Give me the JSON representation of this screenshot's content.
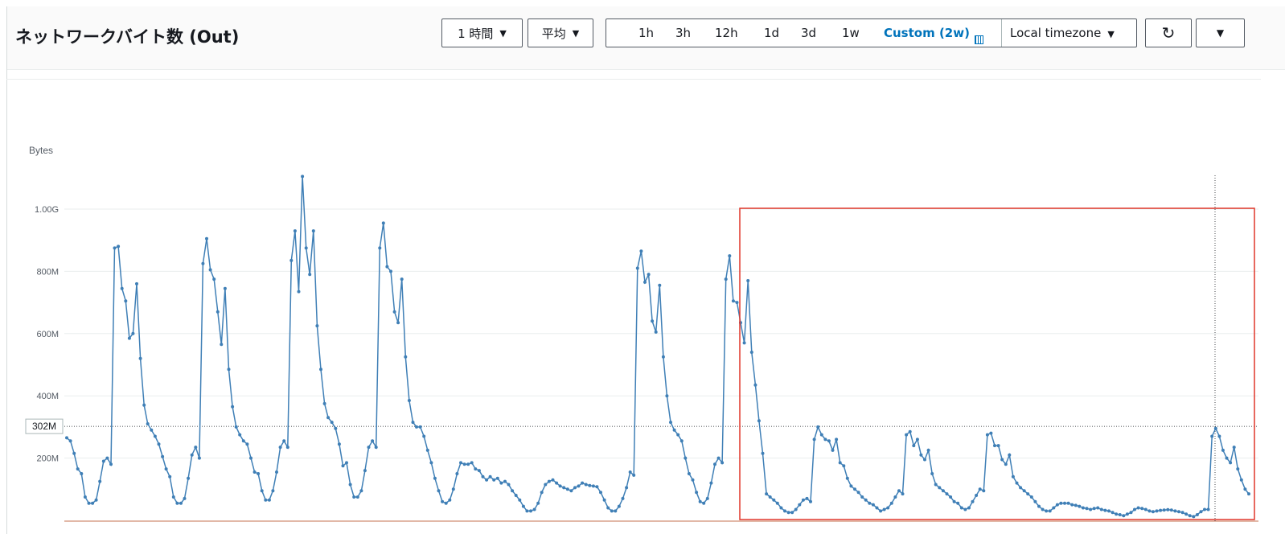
{
  "header": {
    "title": "ネットワークバイト数 (Out)",
    "period": "1 時間",
    "statistic": "平均",
    "ranges": [
      "1h",
      "3h",
      "12h",
      "1d",
      "3d",
      "1w"
    ],
    "custom": "Custom (2w)",
    "timezone": "Local timezone",
    "icons": {
      "refresh": "refresh-icon",
      "menu": "caret-down-icon",
      "calendar": "calendar-icon"
    }
  },
  "chart_data": {
    "type": "line",
    "ylabel": "Bytes",
    "ylim": [
      0,
      1100000000
    ],
    "yticks": [
      {
        "value": 200000000,
        "label": "200M"
      },
      {
        "value": 400000000,
        "label": "400M"
      },
      {
        "value": 600000000,
        "label": "600M"
      },
      {
        "value": 800000000,
        "label": "800M"
      },
      {
        "value": 1000000000,
        "label": "1.00G"
      }
    ],
    "crosshair": {
      "value": 302000000,
      "label": "302M"
    },
    "grid": true,
    "color": "#3f7fb6",
    "highlight_color": "#e0362a",
    "values_mb": [
      265,
      255,
      215,
      165,
      150,
      75,
      55,
      55,
      65,
      125,
      190,
      200,
      180,
      875,
      880,
      745,
      705,
      585,
      600,
      760,
      520,
      370,
      310,
      290,
      270,
      245,
      205,
      165,
      140,
      75,
      55,
      55,
      70,
      135,
      210,
      235,
      200,
      825,
      905,
      805,
      775,
      670,
      565,
      745,
      485,
      365,
      300,
      275,
      255,
      245,
      200,
      155,
      150,
      95,
      65,
      65,
      95,
      155,
      235,
      255,
      235,
      835,
      930,
      735,
      1105,
      875,
      790,
      930,
      625,
      485,
      375,
      330,
      315,
      295,
      245,
      175,
      185,
      115,
      75,
      75,
      95,
      160,
      235,
      255,
      235,
      875,
      955,
      815,
      800,
      670,
      635,
      775,
      525,
      385,
      315,
      300,
      300,
      270,
      225,
      185,
      135,
      95,
      60,
      55,
      65,
      100,
      150,
      185,
      180,
      180,
      185,
      165,
      160,
      140,
      130,
      140,
      130,
      135,
      120,
      125,
      115,
      95,
      80,
      65,
      45,
      30,
      30,
      35,
      55,
      90,
      115,
      125,
      130,
      120,
      110,
      105,
      100,
      95,
      105,
      110,
      120,
      115,
      112,
      110,
      108,
      90,
      65,
      40,
      30,
      30,
      45,
      70,
      105,
      155,
      145,
      810,
      865,
      765,
      790,
      640,
      605,
      755,
      525,
      400,
      315,
      290,
      275,
      255,
      200,
      150,
      130,
      90,
      60,
      55,
      70,
      120,
      180,
      200,
      185,
      775,
      850,
      705,
      700,
      635,
      570,
      770,
      540,
      435,
      320,
      215,
      85,
      75,
      65,
      55,
      40,
      30,
      25,
      25,
      35,
      50,
      65,
      70,
      60,
      260,
      300,
      275,
      260,
      255,
      225,
      260,
      185,
      175,
      135,
      110,
      100,
      90,
      75,
      65,
      55,
      50,
      40,
      30,
      35,
      40,
      55,
      75,
      95,
      85,
      275,
      285,
      240,
      260,
      210,
      195,
      225,
      150,
      115,
      105,
      95,
      85,
      75,
      60,
      55,
      40,
      35,
      40,
      60,
      80,
      100,
      95,
      275,
      280,
      240,
      240,
      195,
      180,
      210,
      140,
      120,
      105,
      95,
      85,
      75,
      60,
      45,
      35,
      30,
      30,
      40,
      50,
      55,
      55,
      55,
      50,
      48,
      45,
      40,
      38,
      35,
      38,
      40,
      35,
      32,
      30,
      25,
      20,
      18,
      15,
      20,
      25,
      35,
      40,
      38,
      35,
      30,
      28,
      30,
      32,
      33,
      34,
      33,
      30,
      28,
      25,
      20,
      15,
      12,
      18,
      28,
      35,
      35,
      270,
      295,
      270,
      225,
      200,
      185,
      235,
      165,
      130,
      100,
      85
    ]
  }
}
